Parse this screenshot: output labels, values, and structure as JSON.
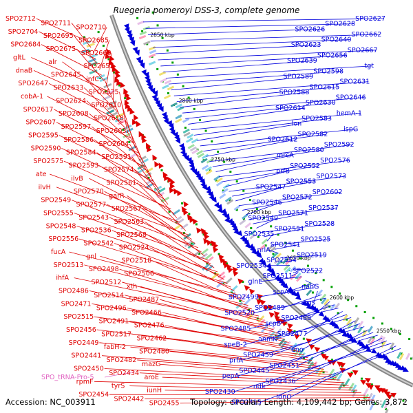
{
  "title": "Ruegeria pomeroyi DSS-3, complete genome",
  "footer": {
    "accession": "Accession: NC_003911",
    "summary": "Topology: circular; Length: 4,109,442 bp; Genes: 3,872"
  },
  "colors": {
    "forward": "#e00000",
    "reverse": "#0000dd",
    "rna": "#e060c0",
    "backbone": "#888888",
    "tick": "#00a000"
  },
  "scale_ticks": [
    "2850 kbp",
    "2800 kbp",
    "2750 kbp",
    "2700 kbp",
    "2650 kbp",
    "2600 kbp",
    "2550 kbp"
  ],
  "labels_forward": [
    "SPO2712",
    "SPO2711",
    "SPO2710",
    "SPO2704",
    "SPO2695",
    "SPO2685",
    "SPO2684",
    "SPO2675",
    "SPO2668",
    "gltL",
    "alr",
    "SPO2653",
    "dnaB",
    "SPO2645",
    "infC",
    "SPO2647",
    "SPO2633",
    "SPO2625",
    "cobA-1",
    "SPO2624",
    "SPO2610",
    "SPO2617",
    "SPO2608",
    "SPO2618",
    "SPO2607",
    "SPO2597",
    "SPO2603",
    "SPO2595",
    "SPO2586",
    "SPO2604",
    "SPO2590",
    "SPO2584",
    "SPO2591",
    "SPO2575",
    "SPO2593",
    "SPO2574",
    "ate",
    "ilvB",
    "SPO2561",
    "ilvH",
    "SPO2570",
    "garR",
    "SPO2549",
    "SPO2577",
    "SPO2567",
    "SPO2555",
    "SPO2543",
    "SPO2563",
    "SPO2548",
    "SPO2536",
    "SPO2568",
    "SPO2556",
    "SPO2542",
    "SPO2524",
    "fucA",
    "gnl",
    "SPO2518",
    "SPO2513",
    "SPO2498",
    "SPO2506",
    "ihfA",
    "SPO2512",
    "xth",
    "SPO2486",
    "SPO2514",
    "SPO2487",
    "SPO2471",
    "SPO2496",
    "SPO2466",
    "SPO2515",
    "SPO2491",
    "SPO2476",
    "SPO2456",
    "SPO2517",
    "SPO2462",
    "SPO2449",
    "fabH-2",
    "SPO2480",
    "SPO2441",
    "SPO2482",
    "mazG",
    "SPO2450",
    "SPO2434",
    "aroE",
    "rpmF",
    "tyrS",
    "iunH",
    "SPO2454",
    "SPO2442",
    "SPO2455"
  ],
  "labels_reverse": [
    "SPO2627",
    "SPO2628",
    "SPO2626",
    "SPO2662",
    "SPO2640",
    "SPO2623",
    "SPO2667",
    "SPO2656",
    "SPO2639",
    "tgt",
    "SPO2598",
    "SPO2589",
    "SPO2631",
    "SPO2615",
    "SPO2588",
    "SPO2646",
    "SPO2630",
    "SPO2614",
    "hemA-1",
    "SPO2583",
    "lon",
    "ispG",
    "SPO2582",
    "SPO2612",
    "SPO2592",
    "SPO2580",
    "mrcA",
    "SPO2576",
    "SPO2552",
    "prfB",
    "SPO2573",
    "SPO2553",
    "SPO2547",
    "SPO2602",
    "SPO2572",
    "SPO2546",
    "SPO2537",
    "SPO2571",
    "SPO2540",
    "SPO2528",
    "SPO2551",
    "SPO2535",
    "SPO2525",
    "SPO2541",
    "nrlA",
    "SPO2519",
    "SPO2554",
    "SPO2534",
    "SPO2522",
    "SPO2511",
    "glnE",
    "nahG",
    "scpA",
    "SPO2499",
    "args",
    "SPO2489",
    "SPO2520",
    "SPO2488",
    "scpB",
    "SPO2485",
    "SPO2477",
    "anmK",
    "speB-2",
    "eno",
    "SPO2459",
    "prfA",
    "SPO2451",
    "SPO2445",
    "pepA",
    "SPO2436",
    "ndk",
    "SPO2430",
    "idnO",
    "SPO2415"
  ],
  "label_rna": "SPO_tRNA-Pro-5"
}
